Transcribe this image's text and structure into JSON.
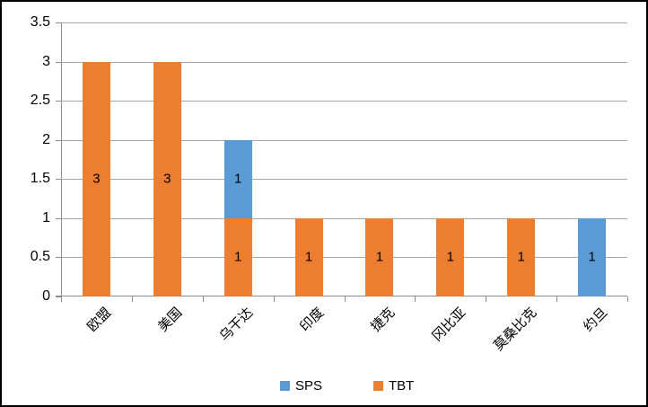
{
  "chart_data": {
    "type": "bar",
    "stacked": true,
    "title": "",
    "xlabel": "",
    "ylabel": "",
    "categories": [
      "欧盟",
      "美国",
      "乌干达",
      "印度",
      "捷克",
      "冈比亚",
      "莫桑比克",
      "约旦"
    ],
    "series": [
      {
        "name": "SPS",
        "color": "#5B9BD5",
        "values": [
          0,
          0,
          1,
          0,
          0,
          0,
          0,
          1
        ]
      },
      {
        "name": "TBT",
        "color": "#ED7D31",
        "values": [
          3,
          3,
          1,
          1,
          1,
          1,
          1,
          0
        ]
      }
    ],
    "stack_order_bottom_to_top": [
      "TBT",
      "SPS"
    ],
    "totals": [
      3,
      3,
      2,
      1,
      1,
      1,
      1,
      1
    ],
    "ylim": [
      0,
      3.5
    ],
    "ytick_step": 0.5,
    "yticks": [
      "0",
      "0.5",
      "1",
      "1.5",
      "2",
      "2.5",
      "3",
      "3.5"
    ],
    "grid": true,
    "data_labels": true,
    "legend_position": "bottom",
    "legend_entries": [
      "SPS",
      "TBT"
    ]
  },
  "colors": {
    "sps": "#5B9BD5",
    "tbt": "#ED7D31",
    "gridline": "#a6a6a6",
    "axis": "#8c8c8c",
    "text": "#000000",
    "background": "#FFFFFF",
    "frame_border": "#000000"
  }
}
